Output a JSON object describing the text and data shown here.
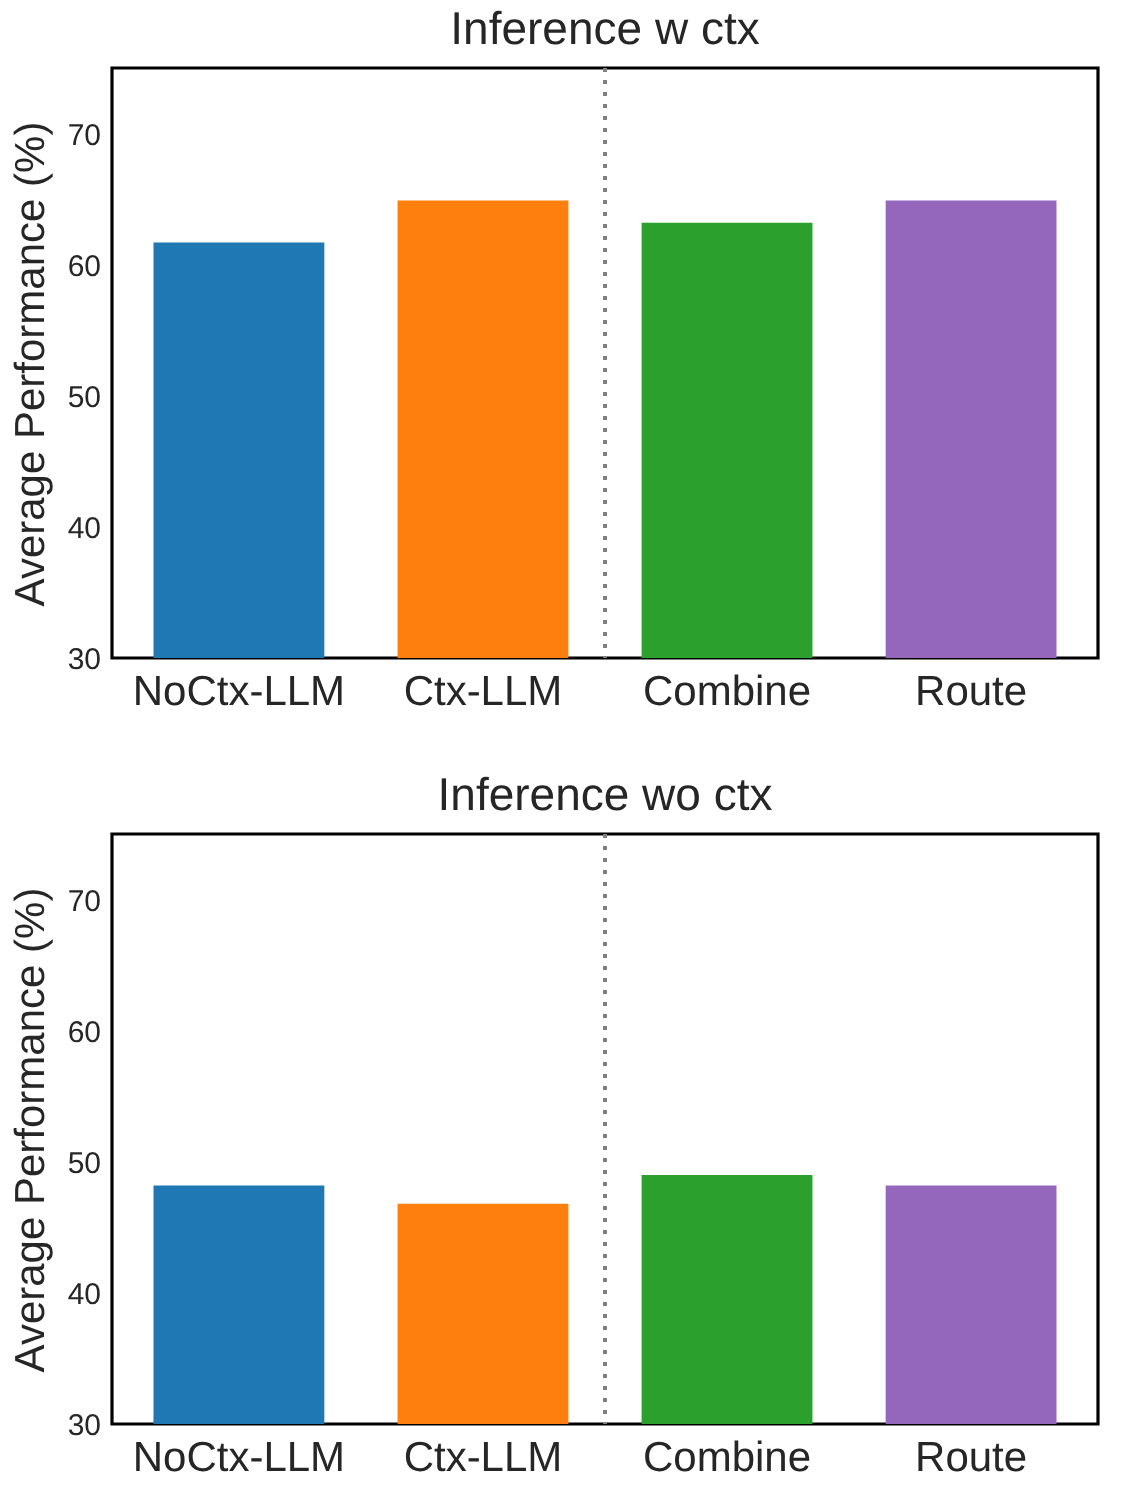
{
  "chart_data": [
    {
      "type": "bar",
      "title": "Inference w ctx",
      "ylabel": "Average Performance (%)",
      "categories": [
        "NoCtx-LLM",
        "Ctx-LLM",
        "Combine",
        "Route"
      ],
      "values": [
        61.7,
        64.9,
        63.2,
        64.9
      ],
      "colors": [
        "#1f77b4",
        "#ff7f0e",
        "#2ca02c",
        "#9467bd"
      ],
      "ylim": [
        30,
        75
      ],
      "yticks": [
        30,
        40,
        50,
        60,
        70
      ]
    },
    {
      "type": "bar",
      "title": "Inference wo ctx",
      "ylabel": "Average Performance (%)",
      "categories": [
        "NoCtx-LLM",
        "Ctx-LLM",
        "Combine",
        "Route"
      ],
      "values": [
        48.2,
        46.8,
        49.0,
        48.2
      ],
      "colors": [
        "#1f77b4",
        "#ff7f0e",
        "#2ca02c",
        "#9467bd"
      ],
      "ylim": [
        30,
        75
      ],
      "yticks": [
        30,
        40,
        50,
        60,
        70
      ]
    }
  ]
}
